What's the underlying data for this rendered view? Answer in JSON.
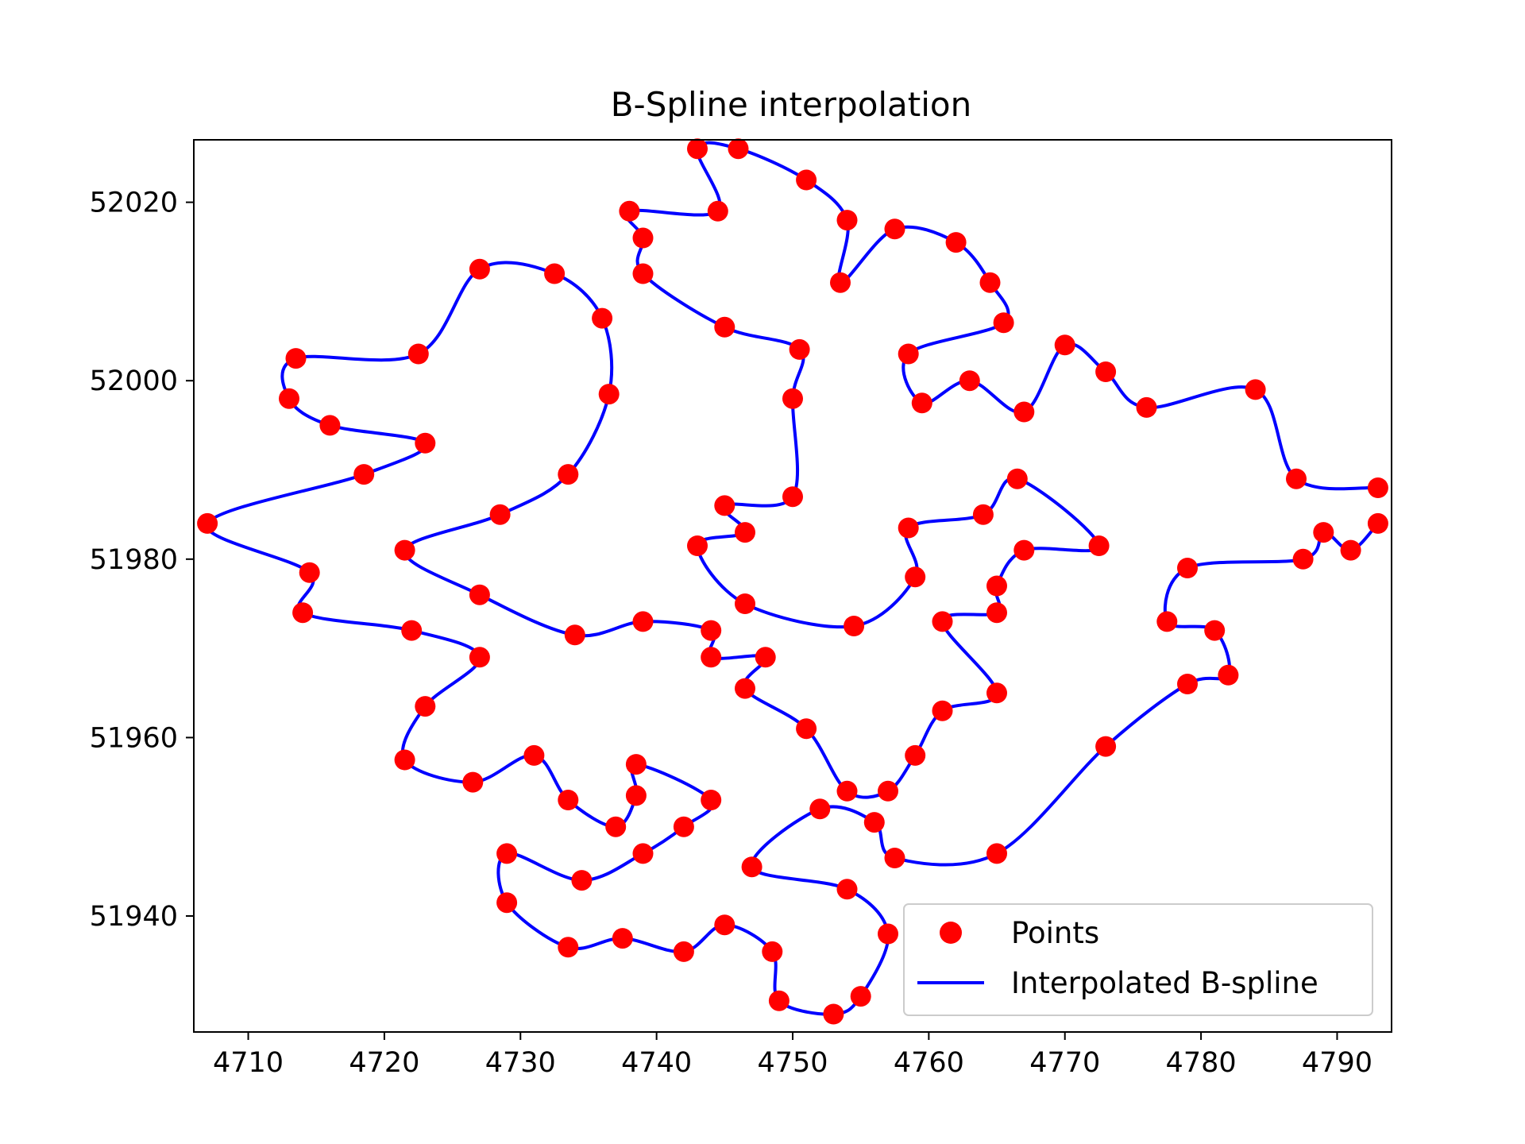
{
  "chart_data": {
    "type": "scatter",
    "title": "B-Spline interpolation",
    "xlabel": "",
    "ylabel": "",
    "xlim": [
      4706,
      4794
    ],
    "ylim": [
      51927,
      52027
    ],
    "x_ticks": [
      4710,
      4720,
      4730,
      4740,
      4750,
      4760,
      4770,
      4780,
      4790
    ],
    "y_ticks": [
      51940,
      51960,
      51980,
      52000,
      52020
    ],
    "x_tick_labels": [
      "4710",
      "4720",
      "4730",
      "4740",
      "4750",
      "4760",
      "4770",
      "4780",
      "4790"
    ],
    "y_tick_labels": [
      "51940",
      "51960",
      "51980",
      "52000",
      "52020"
    ],
    "grid": false,
    "legend_position": "lower-right",
    "colors": {
      "points": "#ff0000",
      "spline": "#0000ff"
    },
    "series": [
      {
        "name": "Points",
        "marker": "circle",
        "color": "#ff0000",
        "points": [
          [
            4793.0,
            51988.0
          ],
          [
            4787.0,
            51989.0
          ],
          [
            4784.0,
            51999.0
          ],
          [
            4776.0,
            51997.0
          ],
          [
            4773.0,
            52001.0
          ],
          [
            4770.0,
            52004.0
          ],
          [
            4767.0,
            51996.5
          ],
          [
            4763.0,
            52000.0
          ],
          [
            4759.5,
            51997.5
          ],
          [
            4758.5,
            52003.0
          ],
          [
            4765.5,
            52006.5
          ],
          [
            4764.5,
            52011.0
          ],
          [
            4762.0,
            52015.5
          ],
          [
            4757.5,
            52017.0
          ],
          [
            4753.5,
            52011.0
          ],
          [
            4754.0,
            52018.0
          ],
          [
            4751.0,
            52022.5
          ],
          [
            4746.0,
            52026.0
          ],
          [
            4743.0,
            52026.0
          ],
          [
            4744.5,
            52019.0
          ],
          [
            4738.0,
            52019.0
          ],
          [
            4739.0,
            52016.0
          ],
          [
            4739.0,
            52012.0
          ],
          [
            4745.0,
            52006.0
          ],
          [
            4750.5,
            52003.5
          ],
          [
            4750.0,
            51998.0
          ],
          [
            4750.0,
            51987.0
          ],
          [
            4745.0,
            51986.0
          ],
          [
            4746.5,
            51983.0
          ],
          [
            4743.0,
            51981.5
          ],
          [
            4746.5,
            51975.0
          ],
          [
            4754.5,
            51972.5
          ],
          [
            4759.0,
            51978.0
          ],
          [
            4758.5,
            51983.5
          ],
          [
            4764.0,
            51985.0
          ],
          [
            4766.5,
            51989.0
          ],
          [
            4772.5,
            51981.5
          ],
          [
            4767.0,
            51981.0
          ],
          [
            4765.0,
            51977.0
          ],
          [
            4765.0,
            51974.0
          ],
          [
            4761.0,
            51973.0
          ],
          [
            4765.0,
            51965.0
          ],
          [
            4761.0,
            51963.0
          ],
          [
            4759.0,
            51958.0
          ],
          [
            4757.0,
            51954.0
          ],
          [
            4754.0,
            51954.0
          ],
          [
            4751.0,
            51961.0
          ],
          [
            4746.5,
            51965.5
          ],
          [
            4748.0,
            51969.0
          ],
          [
            4744.0,
            51969.0
          ],
          [
            4744.0,
            51972.0
          ],
          [
            4739.0,
            51973.0
          ],
          [
            4734.0,
            51971.5
          ],
          [
            4727.0,
            51976.0
          ],
          [
            4721.5,
            51981.0
          ],
          [
            4728.5,
            51985.0
          ],
          [
            4733.5,
            51989.5
          ],
          [
            4736.5,
            51998.5
          ],
          [
            4736.0,
            52007.0
          ],
          [
            4732.5,
            52012.0
          ],
          [
            4727.0,
            52012.5
          ],
          [
            4722.5,
            52003.0
          ],
          [
            4713.5,
            52002.5
          ],
          [
            4713.0,
            51998.0
          ],
          [
            4716.0,
            51995.0
          ],
          [
            4723.0,
            51993.0
          ],
          [
            4718.5,
            51989.5
          ],
          [
            4707.0,
            51984.0
          ],
          [
            4714.5,
            51978.5
          ],
          [
            4714.0,
            51974.0
          ],
          [
            4722.0,
            51972.0
          ],
          [
            4727.0,
            51969.0
          ],
          [
            4723.0,
            51963.5
          ],
          [
            4721.5,
            51957.5
          ],
          [
            4726.5,
            51955.0
          ],
          [
            4731.0,
            51958.0
          ],
          [
            4733.5,
            51953.0
          ],
          [
            4737.0,
            51950.0
          ],
          [
            4738.5,
            51953.5
          ],
          [
            4738.5,
            51957.0
          ],
          [
            4744.0,
            51953.0
          ],
          [
            4742.0,
            51950.0
          ],
          [
            4739.0,
            51947.0
          ],
          [
            4734.5,
            51944.0
          ],
          [
            4729.0,
            51947.0
          ],
          [
            4729.0,
            51941.5
          ],
          [
            4733.5,
            51936.5
          ],
          [
            4737.5,
            51937.5
          ],
          [
            4742.0,
            51936.0
          ],
          [
            4745.0,
            51939.0
          ],
          [
            4748.5,
            51936.0
          ],
          [
            4749.0,
            51930.5
          ],
          [
            4753.0,
            51929.0
          ],
          [
            4755.0,
            51931.0
          ],
          [
            4757.0,
            51938.0
          ],
          [
            4754.0,
            51943.0
          ],
          [
            4747.0,
            51945.5
          ],
          [
            4752.0,
            51952.0
          ],
          [
            4756.0,
            51950.5
          ],
          [
            4757.5,
            51946.5
          ],
          [
            4765.0,
            51947.0
          ],
          [
            4773.0,
            51959.0
          ],
          [
            4779.0,
            51966.0
          ],
          [
            4782.0,
            51967.0
          ],
          [
            4781.0,
            51972.0
          ],
          [
            4777.5,
            51973.0
          ],
          [
            4779.0,
            51979.0
          ],
          [
            4787.5,
            51980.0
          ],
          [
            4789.0,
            51983.0
          ],
          [
            4791.0,
            51981.0
          ],
          [
            4793.0,
            51984.0
          ]
        ]
      },
      {
        "name": "Interpolated B-spline",
        "type": "line",
        "color": "#0000ff"
      }
    ],
    "legend": [
      "Points",
      "Interpolated B-spline"
    ]
  }
}
